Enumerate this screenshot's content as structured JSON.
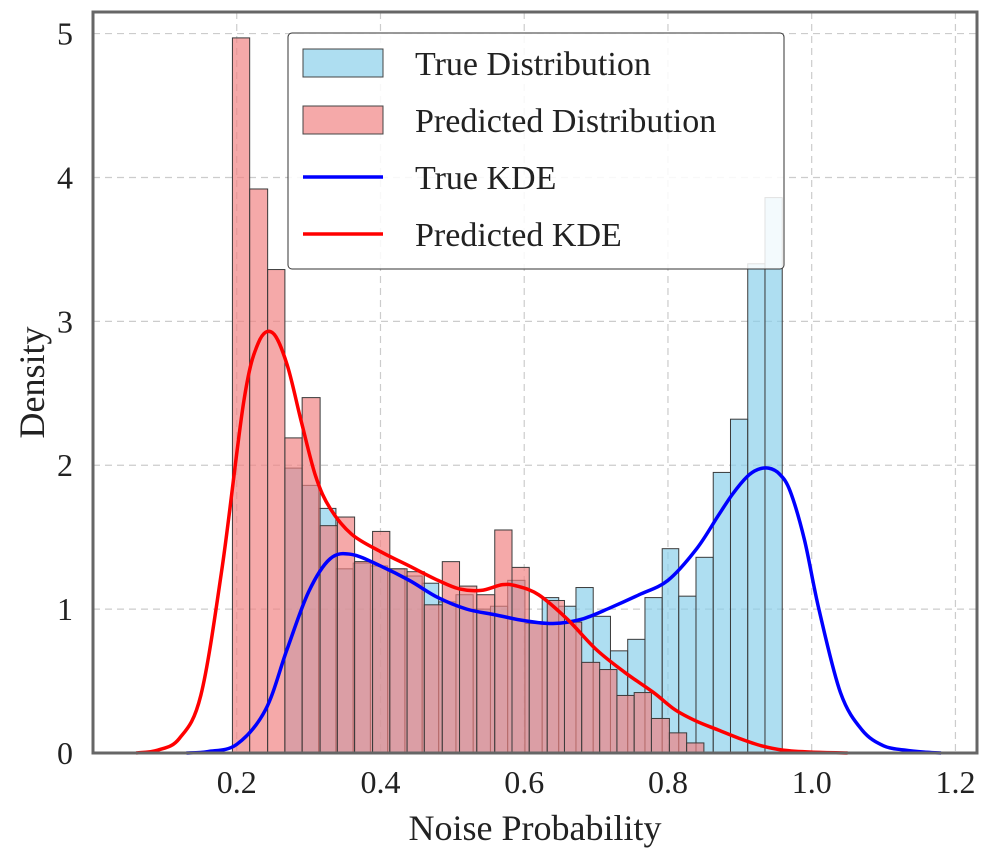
{
  "chart_data": {
    "type": "histogram_kde",
    "xlabel": "Noise Probability",
    "ylabel": "Density",
    "xlim": [
      0.0,
      1.23
    ],
    "ylim": [
      0,
      5.15
    ],
    "xticks": [
      "0.2",
      "0.4",
      "0.6",
      "0.8",
      "1.0",
      "1.2"
    ],
    "xtick_values": [
      0.2,
      0.4,
      0.6,
      0.8,
      1.0,
      1.2
    ],
    "yticks": [
      "0",
      "1",
      "2",
      "3",
      "4",
      "5"
    ],
    "ytick_values": [
      0,
      1,
      2,
      3,
      4,
      5
    ],
    "grid": true,
    "legend_position": "top-center",
    "colors": {
      "true_hist": "#87ceeb",
      "pred_hist": "#f08080",
      "true_kde": "#0000ff",
      "pred_kde": "#ff0000",
      "grid": "#cccccc",
      "frame": "#666666"
    },
    "legend": [
      {
        "label": "True Distribution",
        "kind": "patch",
        "color": "#87ceeb"
      },
      {
        "label": "Predicted Distribution",
        "kind": "patch",
        "color": "#f08080"
      },
      {
        "label": "True KDE",
        "kind": "line",
        "color": "#0000ff"
      },
      {
        "label": "Predicted KDE",
        "kind": "line",
        "color": "#ff0000"
      }
    ],
    "series": [
      {
        "name": "True Distribution",
        "kind": "histogram",
        "bins": [
          [
            0.267,
            0.291,
            1.98
          ],
          [
            0.291,
            0.314,
            1.86
          ],
          [
            0.314,
            0.338,
            1.7
          ],
          [
            0.338,
            0.362,
            1.28
          ],
          [
            0.362,
            0.386,
            1.32
          ],
          [
            0.386,
            0.41,
            1.3
          ],
          [
            0.41,
            0.434,
            1.28
          ],
          [
            0.434,
            0.458,
            1.23
          ],
          [
            0.458,
            0.481,
            1.18
          ],
          [
            0.481,
            0.505,
            1.05
          ],
          [
            0.505,
            0.529,
            1.1
          ],
          [
            0.529,
            0.553,
            1.0
          ],
          [
            0.553,
            0.577,
            1.02
          ],
          [
            0.577,
            0.601,
            1.2
          ],
          [
            0.601,
            0.625,
            0.9
          ],
          [
            0.625,
            0.648,
            1.08
          ],
          [
            0.648,
            0.672,
            1.02
          ],
          [
            0.672,
            0.696,
            1.15
          ],
          [
            0.696,
            0.72,
            0.95
          ],
          [
            0.72,
            0.744,
            0.71
          ],
          [
            0.744,
            0.768,
            0.79
          ],
          [
            0.768,
            0.792,
            1.08
          ],
          [
            0.792,
            0.815,
            1.42
          ],
          [
            0.815,
            0.839,
            1.09
          ],
          [
            0.839,
            0.863,
            1.36
          ],
          [
            0.863,
            0.887,
            1.95
          ],
          [
            0.887,
            0.911,
            2.32
          ],
          [
            0.911,
            0.935,
            3.4
          ],
          [
            0.935,
            0.959,
            3.86
          ]
        ]
      },
      {
        "name": "Predicted Distribution",
        "kind": "histogram",
        "bins": [
          [
            0.194,
            0.218,
            4.97
          ],
          [
            0.218,
            0.243,
            3.92
          ],
          [
            0.243,
            0.267,
            3.36
          ],
          [
            0.267,
            0.291,
            2.19
          ],
          [
            0.291,
            0.316,
            2.47
          ],
          [
            0.316,
            0.34,
            1.58
          ],
          [
            0.34,
            0.364,
            1.64
          ],
          [
            0.364,
            0.389,
            1.33
          ],
          [
            0.389,
            0.413,
            1.54
          ],
          [
            0.413,
            0.437,
            1.28
          ],
          [
            0.437,
            0.461,
            1.26
          ],
          [
            0.461,
            0.486,
            1.03
          ],
          [
            0.486,
            0.51,
            1.33
          ],
          [
            0.51,
            0.534,
            1.16
          ],
          [
            0.534,
            0.559,
            1.1
          ],
          [
            0.559,
            0.583,
            1.55
          ],
          [
            0.583,
            0.607,
            1.29
          ],
          [
            0.607,
            0.632,
            0.91
          ],
          [
            0.632,
            0.656,
            1.06
          ],
          [
            0.656,
            0.68,
            0.91
          ],
          [
            0.68,
            0.705,
            0.63
          ],
          [
            0.705,
            0.729,
            0.58
          ],
          [
            0.729,
            0.753,
            0.4
          ],
          [
            0.753,
            0.777,
            0.42
          ],
          [
            0.777,
            0.802,
            0.24
          ],
          [
            0.802,
            0.826,
            0.14
          ],
          [
            0.826,
            0.85,
            0.07
          ]
        ]
      },
      {
        "name": "True KDE",
        "kind": "line",
        "x": [
          0.13,
          0.16,
          0.2,
          0.24,
          0.27,
          0.3,
          0.33,
          0.36,
          0.4,
          0.44,
          0.48,
          0.52,
          0.56,
          0.6,
          0.64,
          0.68,
          0.72,
          0.76,
          0.8,
          0.84,
          0.87,
          0.89,
          0.91,
          0.925,
          0.94,
          0.955,
          0.97,
          0.99,
          1.01,
          1.04,
          1.07,
          1.1,
          1.13,
          1.16,
          1.18
        ],
        "y": [
          0.0,
          0.01,
          0.06,
          0.3,
          0.72,
          1.12,
          1.35,
          1.38,
          1.3,
          1.2,
          1.08,
          1.0,
          0.96,
          0.92,
          0.9,
          0.93,
          1.01,
          1.1,
          1.2,
          1.42,
          1.65,
          1.8,
          1.92,
          1.97,
          1.98,
          1.94,
          1.82,
          1.48,
          1.0,
          0.42,
          0.16,
          0.05,
          0.02,
          0.005,
          0.0
        ]
      },
      {
        "name": "Predicted KDE",
        "kind": "line",
        "x": [
          0.06,
          0.09,
          0.12,
          0.15,
          0.18,
          0.21,
          0.23,
          0.25,
          0.27,
          0.29,
          0.31,
          0.33,
          0.36,
          0.4,
          0.44,
          0.48,
          0.51,
          0.54,
          0.57,
          0.59,
          0.62,
          0.66,
          0.7,
          0.74,
          0.78,
          0.81,
          0.84,
          0.87,
          0.9,
          0.93,
          0.96,
          1.0,
          1.05
        ],
        "y": [
          0.0,
          0.02,
          0.1,
          0.4,
          1.3,
          2.45,
          2.85,
          2.92,
          2.7,
          2.3,
          1.92,
          1.7,
          1.52,
          1.4,
          1.3,
          1.2,
          1.14,
          1.13,
          1.17,
          1.16,
          1.1,
          0.93,
          0.72,
          0.56,
          0.42,
          0.3,
          0.22,
          0.16,
          0.1,
          0.05,
          0.02,
          0.006,
          0.0
        ]
      }
    ]
  }
}
